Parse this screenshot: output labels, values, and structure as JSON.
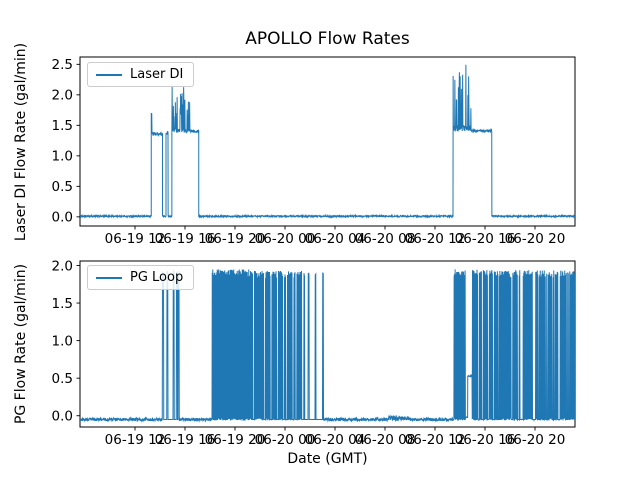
{
  "figure": {
    "title": "APOLLO Flow Rates",
    "xlabel": "Date (GMT)",
    "background_color": "#ffffff",
    "line_color": "#1f77b4",
    "text_color": "#000000",
    "spine_color": "#000000"
  },
  "chart_data": [
    {
      "type": "line",
      "name": "laser-di",
      "series_name": "Laser DI",
      "ylabel": "Laser DI Flow Rate (gal/min)",
      "legend": {
        "label": "Laser DI",
        "position": "upper left"
      },
      "grid": false,
      "xlim": [
        7.6,
        47.2
      ],
      "ylim": [
        -0.15,
        2.62
      ],
      "yticks": [
        0.0,
        0.5,
        1.0,
        1.5,
        2.0,
        2.5
      ],
      "ytick_labels": [
        "0.0",
        "0.5",
        "1.0",
        "1.5",
        "2.0",
        "2.5"
      ],
      "xticks": [
        12,
        16,
        20,
        24,
        28,
        32,
        36,
        40,
        44
      ],
      "xtick_labels": [
        "06-19 12",
        "06-19 16",
        "06-19 20",
        "06-20 00",
        "06-20 04",
        "06-20 08",
        "06-20 12",
        "06-20 16",
        "06-20 20"
      ],
      "units": "gal/min",
      "segments": [
        {
          "t0": 7.6,
          "t1": 13.3,
          "kind": "flat",
          "level": 0.01,
          "noise": 0.025
        },
        {
          "t0": 13.3,
          "t1": 13.36,
          "kind": "flat",
          "level": 1.7,
          "noise": 0.02
        },
        {
          "t0": 13.36,
          "t1": 14.2,
          "kind": "flat",
          "level": 1.36,
          "noise": 0.06
        },
        {
          "t0": 14.2,
          "t1": 14.48,
          "kind": "flat",
          "level": 0.01,
          "noise": 0.02
        },
        {
          "t0": 14.48,
          "t1": 14.65,
          "kind": "flat",
          "level": 1.38,
          "noise": 0.05
        },
        {
          "t0": 14.65,
          "t1": 14.95,
          "kind": "flat",
          "level": 0.01,
          "noise": 0.02
        },
        {
          "t0": 14.95,
          "t1": 16.4,
          "kind": "spiky",
          "plateau": 1.42,
          "noise": 0.08,
          "spike_prob": 0.3,
          "spike_max": 2.15
        },
        {
          "t0": 16.4,
          "t1": 17.1,
          "kind": "flat",
          "level": 1.41,
          "noise": 0.05
        },
        {
          "t0": 17.1,
          "t1": 37.45,
          "kind": "flat",
          "level": 0.01,
          "noise": 0.025
        },
        {
          "t0": 37.45,
          "t1": 38.9,
          "kind": "spiky",
          "plateau": 1.45,
          "noise": 0.1,
          "spike_prob": 0.3,
          "spike_max": 2.5
        },
        {
          "t0": 38.9,
          "t1": 40.55,
          "kind": "flat",
          "level": 1.41,
          "noise": 0.04
        },
        {
          "t0": 40.55,
          "t1": 47.2,
          "kind": "flat",
          "level": 0.01,
          "noise": 0.025
        }
      ]
    },
    {
      "type": "line",
      "name": "pg-loop",
      "series_name": "PG Loop",
      "ylabel": "PG Flow Rate (gal/min)",
      "legend": {
        "label": "PG Loop",
        "position": "upper left"
      },
      "grid": false,
      "xlim": [
        7.6,
        47.2
      ],
      "ylim": [
        -0.15,
        2.06
      ],
      "yticks": [
        0.0,
        0.5,
        1.0,
        1.5,
        2.0
      ],
      "ytick_labels": [
        "0.0",
        "0.5",
        "1.0",
        "1.5",
        "2.0"
      ],
      "xticks": [
        12,
        16,
        20,
        24,
        28,
        32,
        36,
        40,
        44
      ],
      "xtick_labels": [
        "06-19 12",
        "06-19 16",
        "06-19 20",
        "06-20 00",
        "06-20 04",
        "06-20 08",
        "06-20 12",
        "06-20 16",
        "06-20 20"
      ],
      "units": "gal/min",
      "segments": [
        {
          "t0": 7.6,
          "t1": 14.16,
          "kind": "flat",
          "level": -0.05,
          "noise": 0.04
        },
        {
          "t0": 14.16,
          "t1": 15.55,
          "kind": "pulses",
          "base": -0.05,
          "hi": 1.9,
          "width": 0.08,
          "times": [
            14.2,
            14.55,
            15.05,
            15.3,
            15.45
          ]
        },
        {
          "t0": 15.55,
          "t1": 18.16,
          "kind": "flat",
          "level": -0.05,
          "noise": 0.04
        },
        {
          "t0": 18.16,
          "t1": 21.2,
          "kind": "dense",
          "lo": -0.05,
          "hi": 1.9,
          "top_noise": 0.1,
          "gap_prob": 0.004,
          "gap_len": 3
        },
        {
          "t0": 21.2,
          "t1": 25.4,
          "kind": "dense",
          "lo": -0.05,
          "hi": 1.88,
          "top_noise": 0.1,
          "gap_prob": 0.05,
          "gap_len": 5
        },
        {
          "t0": 25.4,
          "t1": 27.1,
          "kind": "pulses",
          "base": -0.05,
          "hi": 1.88,
          "width": 0.07,
          "times": [
            25.5,
            25.85,
            26.4,
            27.0
          ]
        },
        {
          "t0": 27.1,
          "t1": 32.3,
          "kind": "flat",
          "level": -0.05,
          "noise": 0.04
        },
        {
          "t0": 32.3,
          "t1": 33.9,
          "kind": "flat",
          "level": -0.03,
          "noise": 0.06
        },
        {
          "t0": 33.9,
          "t1": 37.45,
          "kind": "flat",
          "level": -0.05,
          "noise": 0.04
        },
        {
          "t0": 37.45,
          "t1": 38.45,
          "kind": "dense",
          "lo": -0.05,
          "hi": 1.9,
          "top_noise": 0.1,
          "gap_prob": 0.01,
          "gap_len": 2
        },
        {
          "t0": 38.45,
          "t1": 38.62,
          "kind": "flat",
          "level": -0.02,
          "noise": 0.01
        },
        {
          "t0": 38.62,
          "t1": 38.98,
          "kind": "flat",
          "level": 0.53,
          "noise": 0.015
        },
        {
          "t0": 38.98,
          "t1": 39.42,
          "kind": "dense",
          "lo": -0.05,
          "hi": 1.9,
          "top_noise": 0.1,
          "gap_prob": 0.0,
          "gap_len": 0
        },
        {
          "t0": 39.42,
          "t1": 39.55,
          "kind": "flat",
          "level": -0.05,
          "noise": 0.02
        },
        {
          "t0": 39.55,
          "t1": 42.3,
          "kind": "dense",
          "lo": -0.05,
          "hi": 1.89,
          "top_noise": 0.1,
          "gap_prob": 0.03,
          "gap_len": 4
        },
        {
          "t0": 42.3,
          "t1": 44.1,
          "kind": "dense",
          "lo": -0.05,
          "hi": 1.89,
          "top_noise": 0.1,
          "gap_prob": 0.1,
          "gap_len": 5
        },
        {
          "t0": 44.1,
          "t1": 47.2,
          "kind": "dense",
          "lo": -0.05,
          "hi": 1.89,
          "top_noise": 0.1,
          "gap_prob": 0.05,
          "gap_len": 3
        }
      ]
    }
  ]
}
